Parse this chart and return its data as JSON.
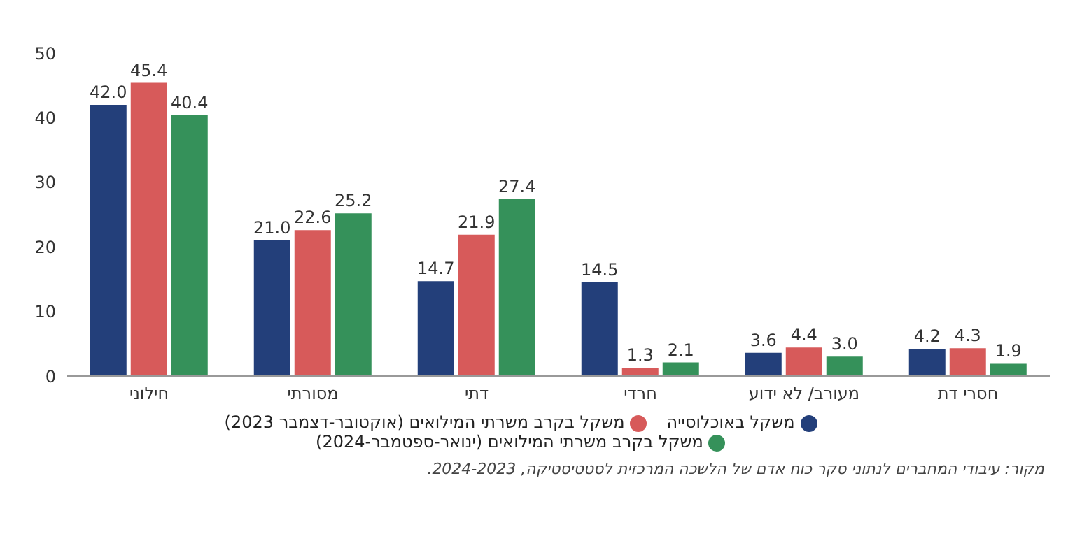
{
  "chart_data": {
    "type": "bar",
    "categories": [
      "חילוני",
      "מסורתי",
      "דתי",
      "חרדי",
      "מעורב/ לא ידוע",
      "חסרי דת"
    ],
    "series": [
      {
        "name": "משקל באוכלוסייה",
        "color": "#233f7a",
        "values": [
          42.0,
          21.0,
          14.7,
          14.5,
          3.6,
          4.2
        ],
        "value_labels": [
          "42.0",
          "21.0",
          "14.7",
          "14.5",
          "3.6",
          "4.2"
        ]
      },
      {
        "name": "משקל בקרב משרתי המילואים (אוקטובר-דצמבר 2023)",
        "color": "#d75a5a",
        "values": [
          45.4,
          22.6,
          21.9,
          1.3,
          4.4,
          4.3
        ],
        "value_labels": [
          "45.4",
          "22.6",
          "21.9",
          "1.3",
          "4.4",
          "4.3"
        ]
      },
      {
        "name": "משקל בקרב משרתי המילואים (ינואר-ספטמבר-2024)",
        "color": "#35915a",
        "values": [
          40.4,
          25.2,
          27.4,
          2.1,
          3.0,
          1.9
        ],
        "value_labels": [
          "40.4",
          "25.2",
          "27.4",
          "2.1",
          "3.0",
          "1.9"
        ]
      }
    ],
    "ylim": [
      0,
      50
    ],
    "yticks": [
      0,
      10,
      20,
      30,
      40,
      50
    ],
    "legend": "bottom",
    "annotations": [
      "מקור: עיבודי המחברים לנתוני סקר כוח אדם של הלשכה המרכזית לסטטיסטיקה, 2024-2023."
    ]
  }
}
